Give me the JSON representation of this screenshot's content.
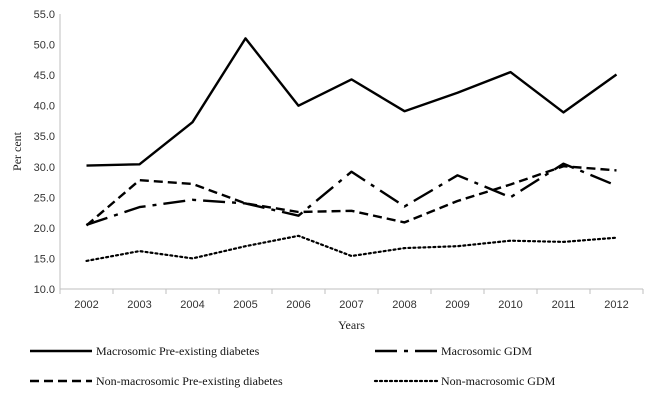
{
  "chart_data": {
    "type": "line",
    "xlabel": "Years",
    "ylabel": "Per cent",
    "ylim": [
      10,
      55
    ],
    "yticks": [
      "10.0",
      "15.0",
      "20.0",
      "25.0",
      "30.0",
      "35.0",
      "40.0",
      "45.0",
      "50.0",
      "55.0"
    ],
    "categories": [
      "2002",
      "2003",
      "2004",
      "2005",
      "2006",
      "2007",
      "2008",
      "2009",
      "2010",
      "2011",
      "2012"
    ],
    "grid": false,
    "legend_position": "bottom",
    "series": [
      {
        "name": "Macrosomic  Pre-existing diabetes",
        "style": "solid",
        "color": "#000000",
        "values": [
          30.2,
          30.4,
          37.3,
          51.0,
          40.0,
          44.3,
          39.1,
          42.1,
          45.5,
          38.9,
          45.1
        ]
      },
      {
        "name": "Macrosomic  GDM",
        "style": "long-dash-dot",
        "color": "#000000",
        "values": [
          20.5,
          23.4,
          24.6,
          24.0,
          22.0,
          29.2,
          23.5,
          28.6,
          25.0,
          30.5,
          26.9
        ]
      },
      {
        "name": "Non-macrosomic  Pre-existing diabetes",
        "style": "dashed",
        "color": "#000000",
        "values": [
          20.4,
          27.8,
          27.2,
          24.0,
          22.6,
          22.8,
          20.9,
          24.4,
          27.1,
          30.1,
          29.4
        ]
      },
      {
        "name": "Non-macrosomic  GDM",
        "style": "dotted",
        "color": "#000000",
        "values": [
          14.6,
          16.2,
          15.0,
          17.0,
          18.7,
          15.4,
          16.7,
          17.0,
          17.9,
          17.7,
          18.4
        ]
      }
    ]
  }
}
